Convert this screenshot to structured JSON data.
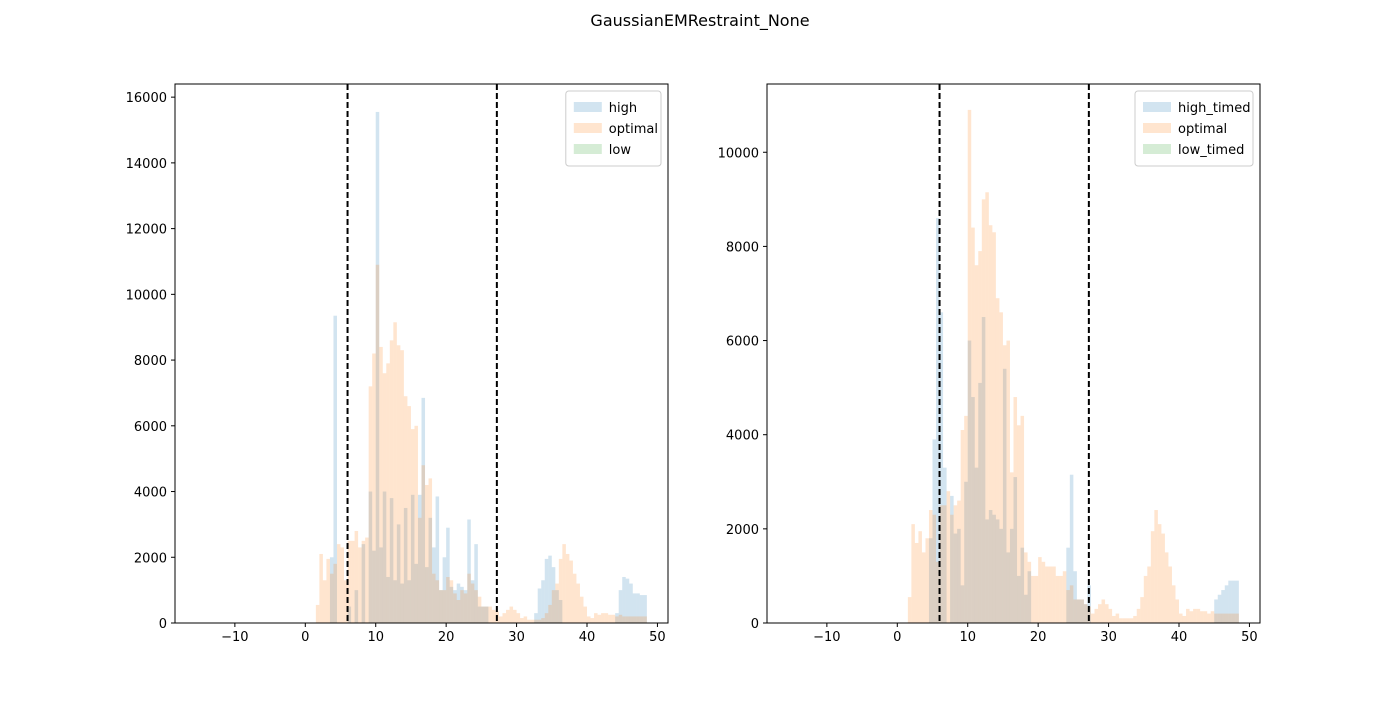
{
  "figure_title": "GaussianEMRestraint_None",
  "colors": {
    "high": "#1f77b4",
    "optimal": "#ff7f0e",
    "low": "#2ca02c",
    "threshold": "#000000"
  },
  "chart_data": [
    {
      "type": "histogram",
      "xlim": [
        -18.5,
        51.5
      ],
      "ylim": [
        0,
        16400
      ],
      "xticks": [
        -10,
        0,
        10,
        20,
        30,
        40,
        50
      ],
      "yticks": [
        0,
        2000,
        4000,
        6000,
        8000,
        10000,
        12000,
        14000,
        16000
      ],
      "threshold_lines": [
        6,
        27.2
      ],
      "legend_position": "upper right",
      "bin_width": 0.5,
      "series": [
        {
          "name": "high",
          "color": "#1f77b4",
          "opacity": 0.2,
          "x": [
            3.75,
            4.25,
            6.25,
            7.25,
            8.25,
            9.25,
            9.75,
            10.25,
            10.75,
            11.25,
            11.75,
            12.25,
            12.75,
            13.25,
            13.75,
            14.25,
            14.75,
            15.25,
            15.75,
            16.25,
            16.75,
            17.25,
            17.75,
            18.25,
            18.75,
            19.25,
            19.75,
            20.25,
            20.75,
            21.25,
            21.75,
            22.25,
            22.75,
            23.25,
            23.75,
            24.25,
            24.75,
            25.25,
            25.75,
            32.75,
            33.25,
            33.75,
            34.25,
            34.75,
            35.25,
            35.75,
            36.25,
            44.25,
            44.75,
            45.25,
            45.75,
            46.25,
            46.75,
            47.25,
            47.75,
            48.25
          ],
          "values": [
            2000,
            9350,
            500,
            1000,
            2400,
            4000,
            2200,
            15550,
            2300,
            4000,
            1400,
            3800,
            1300,
            3000,
            1200,
            3500,
            1300,
            3900,
            1800,
            3900,
            6850,
            1700,
            3200,
            2300,
            3850,
            1000,
            2000,
            2900,
            1100,
            1000,
            1200,
            1100,
            1000,
            3150,
            1300,
            2400,
            500,
            500,
            500,
            300,
            1050,
            1300,
            1950,
            2050,
            1700,
            1000,
            700,
            300,
            1000,
            1400,
            1350,
            1200,
            900,
            900,
            850,
            850
          ]
        },
        {
          "name": "optimal",
          "color": "#ff7f0e",
          "opacity": 0.2,
          "x": [
            1.75,
            2.25,
            2.75,
            3.25,
            3.75,
            4.25,
            4.75,
            5.25,
            5.75,
            6.25,
            6.75,
            7.25,
            7.75,
            8.25,
            8.75,
            9.25,
            9.75,
            10.25,
            10.75,
            11.25,
            11.75,
            12.25,
            12.75,
            13.25,
            13.75,
            14.25,
            14.75,
            15.25,
            15.75,
            16.25,
            16.75,
            17.25,
            17.75,
            18.25,
            18.75,
            19.25,
            19.75,
            20.25,
            20.75,
            21.25,
            21.75,
            22.25,
            22.75,
            23.25,
            23.75,
            24.25,
            24.75,
            25.25,
            25.75,
            26.25,
            26.75,
            27.25,
            27.75,
            28.25,
            28.75,
            29.25,
            29.75,
            30.25,
            30.75,
            31.25,
            31.75,
            32.25,
            32.75,
            33.25,
            33.75,
            34.25,
            34.75,
            35.25,
            35.75,
            36.25,
            36.75,
            37.25,
            37.75,
            38.25,
            38.75,
            39.25,
            39.75,
            40.25,
            40.75,
            41.25,
            41.75,
            42.25,
            42.75,
            43.25,
            43.75,
            44.25,
            44.75,
            45.25,
            45.75,
            46.25,
            46.75,
            47.25,
            47.75,
            48.25
          ],
          "values": [
            550,
            2100,
            1300,
            1950,
            1500,
            1800,
            2400,
            2300,
            1300,
            2500,
            2500,
            2800,
            2300,
            2500,
            2600,
            7200,
            8200,
            10900,
            8400,
            7600,
            7900,
            8600,
            9150,
            8450,
            8300,
            6900,
            6600,
            5900,
            6000,
            3200,
            4800,
            4200,
            4400,
            1500,
            1300,
            1000,
            1000,
            1400,
            1300,
            900,
            700,
            1000,
            900,
            1500,
            1200,
            1000,
            800,
            500,
            500,
            500,
            400,
            350,
            200,
            300,
            400,
            500,
            400,
            300,
            150,
            200,
            100,
            100,
            100,
            100,
            150,
            300,
            550,
            1000,
            1200,
            1950,
            2400,
            2100,
            1900,
            1500,
            1200,
            800,
            500,
            200,
            150,
            300,
            250,
            300,
            300,
            250,
            250,
            200,
            250,
            200,
            200,
            200,
            200,
            200,
            200,
            200
          ]
        },
        {
          "name": "low",
          "color": "#2ca02c",
          "opacity": 0.2,
          "x": [],
          "values": []
        }
      ]
    },
    {
      "type": "histogram",
      "xlim": [
        -18.5,
        51.5
      ],
      "ylim": [
        0,
        11450
      ],
      "xticks": [
        -10,
        0,
        10,
        20,
        30,
        40,
        50
      ],
      "yticks": [
        0,
        2000,
        4000,
        6000,
        8000,
        10000
      ],
      "threshold_lines": [
        6,
        27.2
      ],
      "legend_position": "upper right",
      "bin_width": 0.5,
      "series": [
        {
          "name": "high_timed",
          "color": "#1f77b4",
          "opacity": 0.2,
          "x": [
            4.75,
            5.25,
            5.75,
            6.25,
            6.75,
            7.75,
            8.25,
            8.75,
            9.25,
            9.75,
            10.25,
            10.75,
            11.25,
            11.75,
            12.25,
            12.75,
            13.25,
            13.75,
            14.25,
            14.75,
            15.25,
            15.75,
            16.25,
            16.75,
            17.25,
            17.75,
            18.25,
            18.75,
            24.25,
            24.75,
            25.25,
            25.75,
            26.25,
            26.75,
            27.25,
            45.25,
            45.75,
            46.25,
            46.75,
            47.25,
            47.75,
            48.25
          ],
          "values": [
            1800,
            3900,
            8600,
            6600,
            3300,
            2700,
            1900,
            2000,
            800,
            3000,
            6000,
            4800,
            3300,
            5100,
            6500,
            2200,
            2400,
            2300,
            2200,
            2000,
            5400,
            1500,
            2000,
            3100,
            1000,
            1600,
            600,
            1100,
            1600,
            3150,
            1100,
            500,
            500,
            400,
            800,
            500,
            600,
            700,
            800,
            900,
            900,
            900
          ]
        },
        {
          "name": "optimal",
          "color": "#ff7f0e",
          "opacity": 0.2,
          "x": [
            1.75,
            2.25,
            2.75,
            3.25,
            3.75,
            4.25,
            4.75,
            5.25,
            5.75,
            6.25,
            6.75,
            7.25,
            7.75,
            8.25,
            8.75,
            9.25,
            9.75,
            10.25,
            10.75,
            11.25,
            11.75,
            12.25,
            12.75,
            13.25,
            13.75,
            14.25,
            14.75,
            15.25,
            15.75,
            16.25,
            16.75,
            17.25,
            17.75,
            18.25,
            18.75,
            19.25,
            19.75,
            20.25,
            20.75,
            21.25,
            21.75,
            22.25,
            22.75,
            23.25,
            23.75,
            24.25,
            24.75,
            25.25,
            25.75,
            26.25,
            26.75,
            27.25,
            27.75,
            28.25,
            28.75,
            29.25,
            29.75,
            30.25,
            30.75,
            31.25,
            31.75,
            32.25,
            32.75,
            33.25,
            33.75,
            34.25,
            34.75,
            35.25,
            35.75,
            36.25,
            36.75,
            37.25,
            37.75,
            38.25,
            38.75,
            39.25,
            39.75,
            40.25,
            40.75,
            41.25,
            41.75,
            42.25,
            42.75,
            43.25,
            43.75,
            44.25,
            44.75,
            45.25,
            45.75,
            46.25,
            46.75,
            47.25,
            47.75,
            48.25
          ],
          "values": [
            550,
            2100,
            1700,
            1950,
            1500,
            1800,
            2400,
            2300,
            1300,
            2500,
            2500,
            2800,
            2300,
            2500,
            2600,
            4100,
            4400,
            10900,
            8400,
            7600,
            7900,
            9000,
            9150,
            8450,
            8300,
            6900,
            6600,
            5900,
            6000,
            3200,
            4800,
            4200,
            4400,
            1500,
            1300,
            1000,
            1000,
            1400,
            1300,
            1200,
            1200,
            1200,
            1000,
            1000,
            1100,
            700,
            800,
            500,
            500,
            500,
            400,
            350,
            200,
            300,
            400,
            500,
            400,
            300,
            150,
            200,
            100,
            100,
            100,
            100,
            150,
            300,
            550,
            1000,
            1200,
            1950,
            2400,
            2100,
            1900,
            1500,
            1200,
            800,
            500,
            200,
            150,
            300,
            250,
            300,
            300,
            250,
            250,
            200,
            250,
            200,
            200,
            200,
            200,
            200,
            200,
            200
          ]
        },
        {
          "name": "low_timed",
          "color": "#2ca02c",
          "opacity": 0.2,
          "x": [],
          "values": []
        }
      ]
    }
  ]
}
